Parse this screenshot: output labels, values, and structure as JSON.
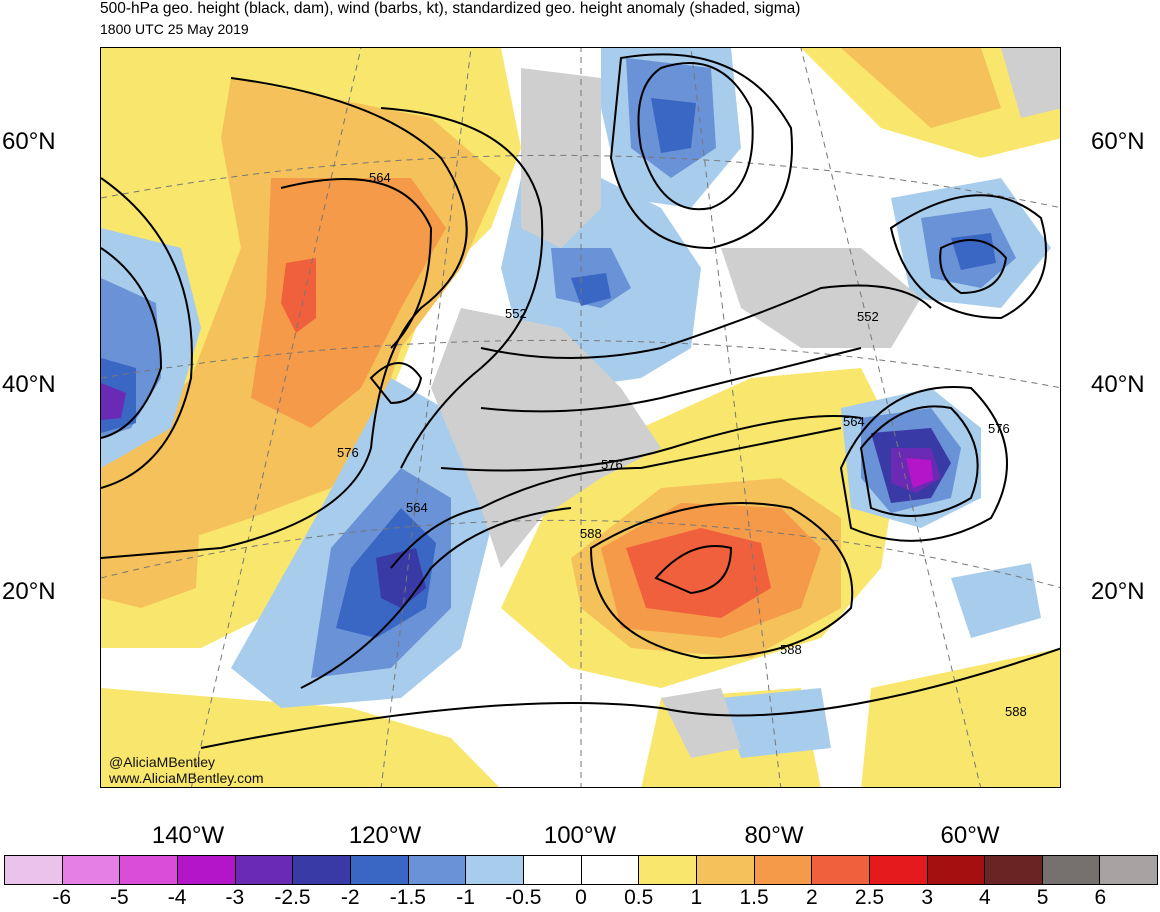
{
  "title": "500-hPa geo. height (black, dam), wind (barbs, kt), standardized geo. height anomaly (shaded, sigma)",
  "subtitle": "1800 UTC 25 May 2019",
  "credits": [
    "@AliciaMBentley",
    "www.AliciaMBentley.com"
  ],
  "lat_labels": [
    "60°N",
    "40°N",
    "20°N"
  ],
  "lon_labels": [
    "140°W",
    "120°W",
    "100°W",
    "80°W",
    "60°W"
  ],
  "contour_labels": [
    "564",
    "552",
    "552",
    "576",
    "576",
    "564",
    "564",
    "576",
    "588",
    "588",
    "588"
  ],
  "colorbar": {
    "colors": [
      "#ebc2eb",
      "#e57fe5",
      "#d94dd9",
      "#b415c8",
      "#6a2ab3",
      "#3a3aa6",
      "#3a66c4",
      "#6a92d6",
      "#a8cdec",
      "#ffffff",
      "#ffffff",
      "#f9e66c",
      "#f5c15a",
      "#f59a48",
      "#f0603c",
      "#e41a1c",
      "#a50f0f",
      "#6b2424",
      "#76706e",
      "#a9a2a2"
    ],
    "ticks": [
      "-6",
      "-5",
      "-4",
      "-3",
      "-2.5",
      "-2",
      "-1.5",
      "-1",
      "-0.5",
      "0",
      "0.5",
      "1",
      "1.5",
      "2",
      "2.5",
      "3",
      "4",
      "5",
      "6"
    ]
  }
}
